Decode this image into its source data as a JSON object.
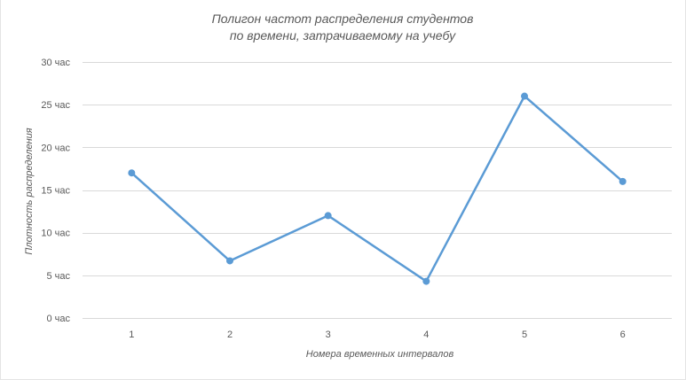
{
  "chart_data": {
    "type": "line",
    "title_lines": [
      "Полигон частот распределения студентов",
      "по времени, затрачиваемому на учебу"
    ],
    "xlabel": "Номера временных интервалов",
    "ylabel": "Плотность распределения",
    "categories": [
      "1",
      "2",
      "3",
      "4",
      "5",
      "6"
    ],
    "series": [
      {
        "values": [
          17,
          6.7,
          12,
          4.3,
          26,
          16
        ],
        "color": "#5b9bd5"
      }
    ],
    "ylim": [
      0,
      30
    ],
    "y_ticks": [
      0,
      5,
      10,
      15,
      20,
      25,
      30
    ],
    "y_tick_suffix": " час",
    "grid": true,
    "legend": "none",
    "line_color": "#5b9bd5",
    "grid_color": "#d9d9d9",
    "text_color": "#595959"
  }
}
